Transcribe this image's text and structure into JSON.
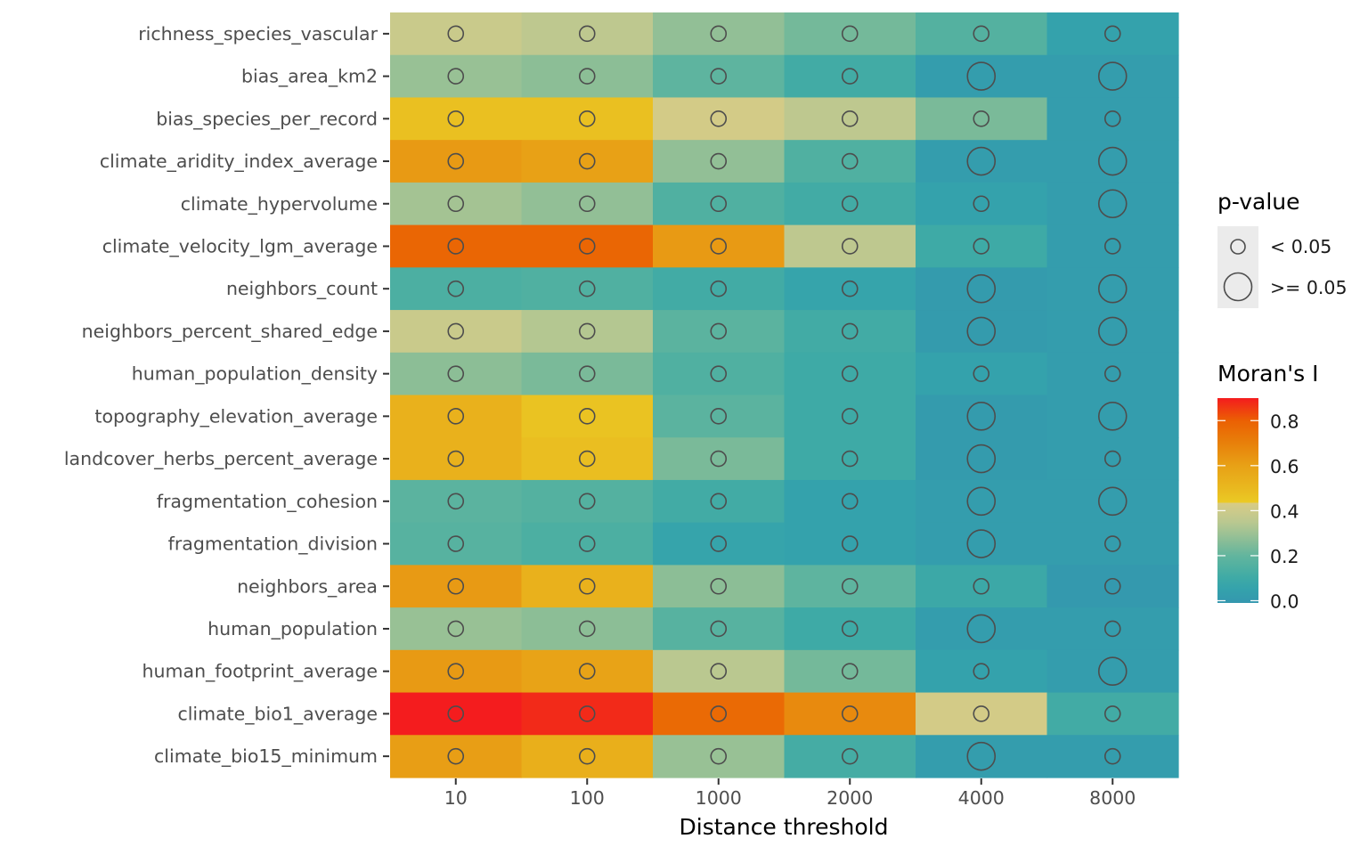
{
  "chart_data": {
    "type": "heatmap",
    "title": "",
    "xlabel": "Distance threshold",
    "ylabel": "",
    "x_categories": [
      "10",
      "100",
      "1000",
      "2000",
      "4000",
      "8000"
    ],
    "y_categories": [
      "richness_species_vascular",
      "bias_area_km2",
      "bias_species_per_record",
      "climate_aridity_index_average",
      "climate_hypervolume",
      "climate_velocity_lgm_average",
      "neighbors_count",
      "neighbors_percent_shared_edge",
      "human_population_density",
      "topography_elevation_average",
      "landcover_herbs_percent_average",
      "fragmentation_cohesion",
      "fragmentation_division",
      "neighbors_area",
      "human_population",
      "human_footprint_average",
      "climate_bio1_average",
      "climate_bio15_minimum"
    ],
    "fill_variable": "Moran's I",
    "values": [
      [
        0.39,
        0.36,
        0.28,
        0.23,
        0.16,
        0.05
      ],
      [
        0.29,
        0.27,
        0.19,
        0.11,
        0.02,
        0.02
      ],
      [
        0.47,
        0.47,
        0.42,
        0.36,
        0.24,
        0.02
      ],
      [
        0.62,
        0.6,
        0.28,
        0.15,
        0.02,
        0.02
      ],
      [
        0.31,
        0.28,
        0.15,
        0.11,
        0.05,
        0.02
      ],
      [
        0.78,
        0.78,
        0.62,
        0.36,
        0.1,
        0.02
      ],
      [
        0.14,
        0.15,
        0.11,
        0.06,
        0.01,
        0.02
      ],
      [
        0.39,
        0.34,
        0.18,
        0.11,
        0.01,
        0.02
      ],
      [
        0.27,
        0.24,
        0.15,
        0.1,
        0.05,
        0.02
      ],
      [
        0.53,
        0.46,
        0.18,
        0.1,
        0.01,
        0.02
      ],
      [
        0.53,
        0.48,
        0.24,
        0.1,
        0.01,
        0.02
      ],
      [
        0.18,
        0.16,
        0.11,
        0.05,
        0.02,
        0.02
      ],
      [
        0.17,
        0.14,
        0.06,
        0.05,
        0.02,
        0.02
      ],
      [
        0.62,
        0.53,
        0.27,
        0.19,
        0.09,
        0.0
      ],
      [
        0.29,
        0.27,
        0.17,
        0.1,
        0.02,
        0.02
      ],
      [
        0.62,
        0.59,
        0.35,
        0.23,
        0.05,
        0.02
      ],
      [
        0.9,
        0.88,
        0.77,
        0.67,
        0.42,
        0.11
      ],
      [
        0.61,
        0.54,
        0.29,
        0.12,
        0.02,
        0.02
      ]
    ],
    "p_value_class": [
      [
        "< 0.05",
        "< 0.05",
        "< 0.05",
        "< 0.05",
        "< 0.05",
        "< 0.05"
      ],
      [
        "< 0.05",
        "< 0.05",
        "< 0.05",
        "< 0.05",
        ">= 0.05",
        ">= 0.05"
      ],
      [
        "< 0.05",
        "< 0.05",
        "< 0.05",
        "< 0.05",
        "< 0.05",
        "< 0.05"
      ],
      [
        "< 0.05",
        "< 0.05",
        "< 0.05",
        "< 0.05",
        ">= 0.05",
        ">= 0.05"
      ],
      [
        "< 0.05",
        "< 0.05",
        "< 0.05",
        "< 0.05",
        "< 0.05",
        ">= 0.05"
      ],
      [
        "< 0.05",
        "< 0.05",
        "< 0.05",
        "< 0.05",
        "< 0.05",
        "< 0.05"
      ],
      [
        "< 0.05",
        "< 0.05",
        "< 0.05",
        "< 0.05",
        ">= 0.05",
        ">= 0.05"
      ],
      [
        "< 0.05",
        "< 0.05",
        "< 0.05",
        "< 0.05",
        ">= 0.05",
        ">= 0.05"
      ],
      [
        "< 0.05",
        "< 0.05",
        "< 0.05",
        "< 0.05",
        "< 0.05",
        "< 0.05"
      ],
      [
        "< 0.05",
        "< 0.05",
        "< 0.05",
        "< 0.05",
        ">= 0.05",
        ">= 0.05"
      ],
      [
        "< 0.05",
        "< 0.05",
        "< 0.05",
        "< 0.05",
        ">= 0.05",
        "< 0.05"
      ],
      [
        "< 0.05",
        "< 0.05",
        "< 0.05",
        "< 0.05",
        ">= 0.05",
        ">= 0.05"
      ],
      [
        "< 0.05",
        "< 0.05",
        "< 0.05",
        "< 0.05",
        ">= 0.05",
        "< 0.05"
      ],
      [
        "< 0.05",
        "< 0.05",
        "< 0.05",
        "< 0.05",
        "< 0.05",
        "< 0.05"
      ],
      [
        "< 0.05",
        "< 0.05",
        "< 0.05",
        "< 0.05",
        ">= 0.05",
        "< 0.05"
      ],
      [
        "< 0.05",
        "< 0.05",
        "< 0.05",
        "< 0.05",
        "< 0.05",
        ">= 0.05"
      ],
      [
        "< 0.05",
        "< 0.05",
        "< 0.05",
        "< 0.05",
        "< 0.05",
        "< 0.05"
      ],
      [
        "< 0.05",
        "< 0.05",
        "< 0.05",
        "< 0.05",
        ">= 0.05",
        "< 0.05"
      ]
    ],
    "color_scale": {
      "title": "Moran's I",
      "range": [
        -0.01,
        0.9
      ],
      "ticks": [
        0.0,
        0.2,
        0.4,
        0.6,
        0.8
      ],
      "tick_labels": [
        "0.0",
        "0.2",
        "0.4",
        "0.6",
        "0.8"
      ],
      "stops": [
        {
          "value": -0.01,
          "color": "#3497AE"
        },
        {
          "value": 0.05,
          "color": "#34A2AC"
        },
        {
          "value": 0.1,
          "color": "#3EAAA6"
        },
        {
          "value": 0.15,
          "color": "#50B0A1"
        },
        {
          "value": 0.2,
          "color": "#62B59E"
        },
        {
          "value": 0.25,
          "color": "#80BB98"
        },
        {
          "value": 0.3,
          "color": "#9EC294"
        },
        {
          "value": 0.35,
          "color": "#BAC890"
        },
        {
          "value": 0.4,
          "color": "#CDCA8A"
        },
        {
          "value": 0.435,
          "color": "#D8CB84"
        },
        {
          "value": 0.436,
          "color": "#EBCA24"
        },
        {
          "value": 0.5,
          "color": "#E9B81F"
        },
        {
          "value": 0.6,
          "color": "#E8A116"
        },
        {
          "value": 0.7,
          "color": "#E8800A"
        },
        {
          "value": 0.8,
          "color": "#EB6003"
        },
        {
          "value": 0.9,
          "color": "#F41C1E"
        }
      ]
    },
    "size_legend": {
      "title": "p-value",
      "entries": [
        "< 0.05",
        ">= 0.05"
      ]
    },
    "legend_position": "right",
    "grid": false
  }
}
